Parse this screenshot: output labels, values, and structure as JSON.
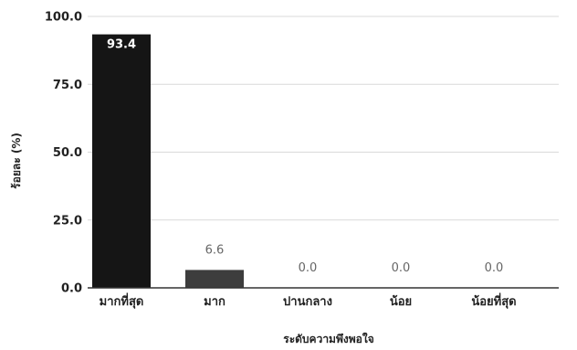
{
  "chart_data": {
    "type": "bar",
    "title": "",
    "xlabel": "ระดับความพึงพอใจ",
    "ylabel": "ร้อยละ (%)",
    "categories": [
      "มากที่สุด",
      "มาก",
      "ปานกลาง",
      "น้อย",
      "น้อยที่สุด"
    ],
    "values": [
      93.4,
      6.6,
      0.0,
      0.0,
      0.0
    ],
    "value_labels": [
      "93.4",
      "6.6",
      "0.0",
      "0.0",
      "0.0"
    ],
    "ylim": [
      0,
      100
    ],
    "yticks": [
      "0.0",
      "25.0",
      "50.0",
      "75.0",
      "100.0"
    ],
    "grid": true,
    "legend": "none",
    "colors": {
      "bar": "#151515",
      "bar_small": "#3d3d3d",
      "grid": "#d9d9d9"
    }
  }
}
